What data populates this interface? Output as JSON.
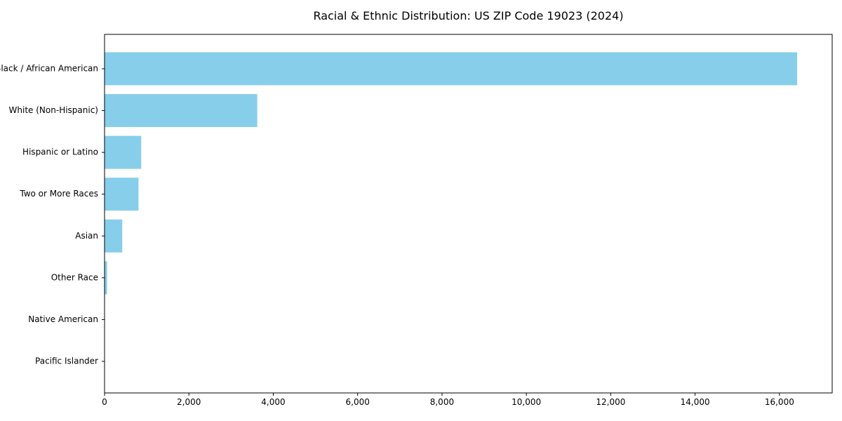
{
  "chart_data": {
    "type": "bar",
    "orientation": "horizontal",
    "title": "Racial & Ethnic Distribution: US ZIP Code 19023 (2024)",
    "categories": [
      "Black / African American",
      "White (Non-Hispanic)",
      "Hispanic or Latino",
      "Two or More Races",
      "Asian",
      "Other Race",
      "Native American",
      "Pacific Islander"
    ],
    "values": [
      16420,
      3620,
      870,
      805,
      420,
      60,
      0,
      0
    ],
    "xlabel": "",
    "ylabel": "",
    "xlim": [
      0,
      17250
    ],
    "xticks": [
      0,
      2000,
      4000,
      6000,
      8000,
      10000,
      12000,
      14000,
      16000
    ],
    "grid": false,
    "legend_position": "none",
    "bar_color": "#87CEEB",
    "axis_color": "#000000",
    "text_color": "#000000",
    "background_color": "#FFFFFF"
  }
}
